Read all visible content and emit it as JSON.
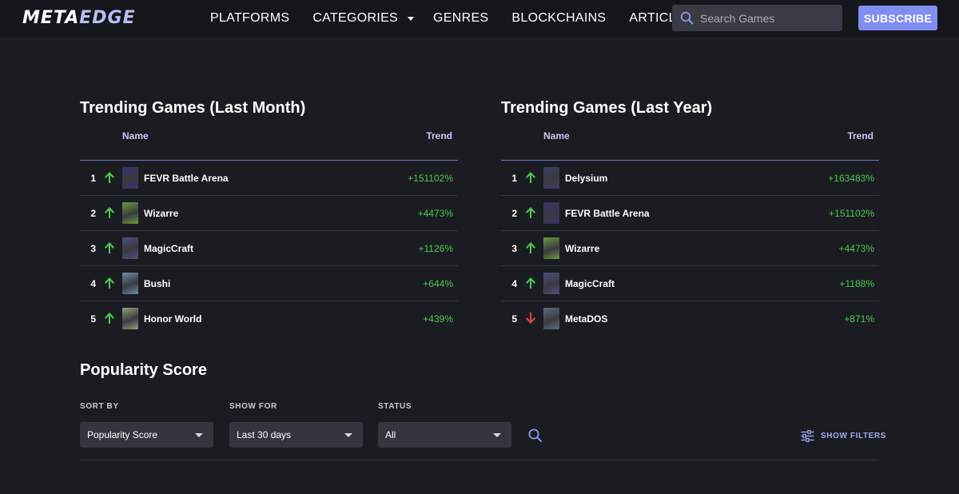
{
  "header": {
    "logo_meta": "META",
    "logo_edge": "EDGE",
    "nav": [
      {
        "label": "PLATFORMS"
      },
      {
        "label": "CATEGORIES"
      },
      {
        "label": "GENRES"
      },
      {
        "label": "BLOCKCHAINS"
      },
      {
        "label": "ARTICLES"
      }
    ],
    "search_placeholder": "Search Games",
    "subscribe_label": "SUBSCRIBE"
  },
  "trending_month": {
    "title": "Trending Games (Last Month)",
    "col_name": "Name",
    "col_trend": "Trend",
    "rows": [
      {
        "rank": "1",
        "direction": "up",
        "name": "FEVR Battle Arena",
        "trend": "+151102%",
        "thumb": "#3d2f72"
      },
      {
        "rank": "2",
        "direction": "up",
        "name": "Wizarre",
        "trend": "+4473%",
        "thumb": "#6f9a3c"
      },
      {
        "rank": "3",
        "direction": "up",
        "name": "MagicCraft",
        "trend": "+1126%",
        "thumb": "#4d4f7e"
      },
      {
        "rank": "4",
        "direction": "up",
        "name": "Bushi",
        "trend": "+644%",
        "thumb": "#6a8ba8"
      },
      {
        "rank": "5",
        "direction": "up",
        "name": "Honor World",
        "trend": "+439%",
        "thumb": "#8fa07a"
      }
    ]
  },
  "trending_year": {
    "title": "Trending Games (Last Year)",
    "col_name": "Name",
    "col_trend": "Trend",
    "rows": [
      {
        "rank": "1",
        "direction": "up",
        "name": "Delysium",
        "trend": "+163483%",
        "thumb": "#3b3f66"
      },
      {
        "rank": "2",
        "direction": "up",
        "name": "FEVR Battle Arena",
        "trend": "+151102%",
        "thumb": "#3d2f72"
      },
      {
        "rank": "3",
        "direction": "up",
        "name": "Wizarre",
        "trend": "+4473%",
        "thumb": "#6f9a3c"
      },
      {
        "rank": "4",
        "direction": "up",
        "name": "MagicCraft",
        "trend": "+1188%",
        "thumb": "#4d4f7e"
      },
      {
        "rank": "5",
        "direction": "down",
        "name": "MetaDOS",
        "trend": "+871%",
        "thumb": "#5b6c7e"
      }
    ]
  },
  "popularity": {
    "title": "Popularity Score",
    "sort_by_label": "SORT BY",
    "sort_by_value": "Popularity Score",
    "show_for_label": "SHOW FOR",
    "show_for_value": "Last 30 days",
    "status_label": "STATUS",
    "status_value": "All",
    "show_filters_label": "SHOW FILTERS"
  },
  "colors": {
    "background": "#1b1c22",
    "header": "#15161c",
    "accent": "#7f8ef0",
    "trend_up": "#4cc94c",
    "trend_down": "#e0483e"
  }
}
